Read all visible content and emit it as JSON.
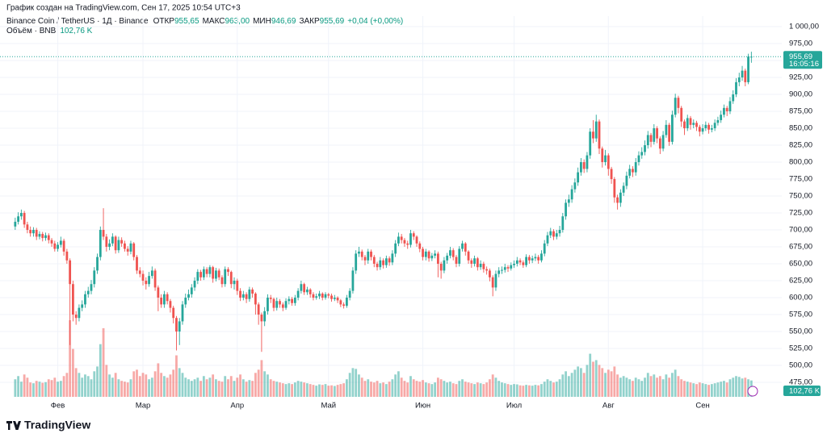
{
  "header": {
    "created": "График создан на TradingView.com, Сен 17, 2025 10:54 UTC+3"
  },
  "chart_data": {
    "type": "candlestick",
    "title": "Binance Coin / TetherUS · 1Д · Binance",
    "legend": [
      {
        "name": "ОТКР",
        "value": 955.65,
        "value_label": "955,65"
      },
      {
        "name": "МАКС",
        "value": 963,
        "value_label": "963,00"
      },
      {
        "name": "МИН",
        "value": 946.69,
        "value_label": "946,69"
      },
      {
        "name": "ЗАКР",
        "value": 955.69,
        "value_label": "955,69"
      }
    ],
    "change": {
      "value": 0.04,
      "label": "+0,04 (+0,00%)"
    },
    "volume_title": "Объём · BNB",
    "volume_last": {
      "value": 102.76,
      "label": "102,76 K"
    },
    "last_price": {
      "value": 955.69,
      "label": "955,69"
    },
    "countdown": "16:05:16",
    "up_color": "#26a69a",
    "down_color": "#ef5350",
    "grid": true,
    "xlim": [
      13,
      270
    ],
    "xticks": [
      {
        "value": 32,
        "label": "Фев"
      },
      {
        "value": 60,
        "label": "Мар"
      },
      {
        "value": 91,
        "label": "Апр"
      },
      {
        "value": 121,
        "label": "Май"
      },
      {
        "value": 152,
        "label": "Июн"
      },
      {
        "value": 182,
        "label": "Июл"
      },
      {
        "value": 213,
        "label": "Авг"
      },
      {
        "value": 244,
        "label": "Сен"
      }
    ],
    "ylim": [
      453.6,
      1015.5
    ],
    "yticks": [
      {
        "value": 475,
        "label": "475,00"
      },
      {
        "value": 500,
        "label": "500,00"
      },
      {
        "value": 525,
        "label": "525,00"
      },
      {
        "value": 550,
        "label": "550,00"
      },
      {
        "value": 575,
        "label": "575,00"
      },
      {
        "value": 600,
        "label": "600,00"
      },
      {
        "value": 625,
        "label": "625,00"
      },
      {
        "value": 650,
        "label": "650,00"
      },
      {
        "value": 675,
        "label": "675,00"
      },
      {
        "value": 700,
        "label": "700,00"
      },
      {
        "value": 725,
        "label": "725,00"
      },
      {
        "value": 750,
        "label": "750,00"
      },
      {
        "value": 775,
        "label": "775,00"
      },
      {
        "value": 800,
        "label": "800,00"
      },
      {
        "value": 825,
        "label": "825,00"
      },
      {
        "value": 850,
        "label": "850,00"
      },
      {
        "value": 875,
        "label": "875,00"
      },
      {
        "value": 900,
        "label": "900,00"
      },
      {
        "value": 925,
        "label": "925,00"
      },
      {
        "value": 950,
        "label": "950,00"
      },
      {
        "value": 975,
        "label": "975,00"
      },
      {
        "value": 1000,
        "label": "1 000,00"
      }
    ],
    "x": [
      18,
      19,
      20,
      21,
      22,
      23,
      24,
      25,
      26,
      27,
      28,
      29,
      30,
      31,
      32,
      33,
      34,
      35,
      36,
      37,
      38,
      39,
      40,
      41,
      42,
      43,
      44,
      45,
      46,
      47,
      48,
      49,
      50,
      51,
      52,
      53,
      54,
      55,
      56,
      57,
      58,
      59,
      60,
      61,
      62,
      63,
      64,
      65,
      66,
      67,
      68,
      69,
      70,
      71,
      72,
      73,
      74,
      75,
      76,
      77,
      78,
      79,
      80,
      81,
      82,
      83,
      84,
      85,
      86,
      87,
      88,
      89,
      90,
      91,
      92,
      93,
      94,
      95,
      96,
      97,
      98,
      99,
      100,
      101,
      102,
      103,
      104,
      105,
      106,
      107,
      108,
      109,
      110,
      111,
      112,
      113,
      114,
      115,
      116,
      117,
      118,
      119,
      120,
      121,
      122,
      123,
      124,
      125,
      126,
      127,
      128,
      129,
      130,
      131,
      132,
      133,
      134,
      135,
      136,
      137,
      138,
      139,
      140,
      141,
      142,
      143,
      144,
      145,
      146,
      147,
      148,
      149,
      150,
      151,
      152,
      153,
      154,
      155,
      156,
      157,
      158,
      159,
      160,
      161,
      162,
      163,
      164,
      165,
      166,
      167,
      168,
      169,
      170,
      171,
      172,
      173,
      174,
      175,
      176,
      177,
      178,
      179,
      180,
      181,
      182,
      183,
      184,
      185,
      186,
      187,
      188,
      189,
      190,
      191,
      192,
      193,
      194,
      195,
      196,
      197,
      198,
      199,
      200,
      201,
      202,
      203,
      204,
      205,
      206,
      207,
      208,
      209,
      210,
      211,
      212,
      213,
      214,
      215,
      216,
      217,
      218,
      219,
      220,
      221,
      222,
      223,
      224,
      225,
      226,
      227,
      228,
      229,
      230,
      231,
      232,
      233,
      234,
      235,
      236,
      237,
      238,
      239,
      240,
      241,
      242,
      243,
      244,
      245,
      246,
      247,
      248,
      249,
      250,
      251,
      252,
      253,
      254,
      255,
      256,
      257,
      258,
      259,
      260
    ],
    "open": [
      705,
      712,
      720,
      725,
      708,
      700,
      695,
      700,
      690,
      694,
      688,
      692,
      685,
      680,
      672,
      678,
      684,
      668,
      655,
      620,
      575,
      570,
      585,
      590,
      605,
      610,
      620,
      640,
      660,
      700,
      690,
      675,
      680,
      690,
      670,
      685,
      680,
      672,
      668,
      680,
      660,
      640,
      635,
      625,
      620,
      632,
      640,
      615,
      600,
      590,
      605,
      595,
      585,
      570,
      550,
      565,
      590,
      600,
      605,
      615,
      625,
      638,
      630,
      642,
      635,
      645,
      628,
      640,
      630,
      620,
      642,
      638,
      620,
      625,
      610,
      600,
      605,
      598,
      612,
      606,
      590,
      575,
      565,
      580,
      600,
      598,
      585,
      595,
      590,
      585,
      595,
      598,
      592,
      600,
      610,
      620,
      608,
      612,
      605,
      600,
      602,
      606,
      600,
      605,
      603,
      598,
      600,
      596,
      590,
      588,
      600,
      610,
      640,
      665,
      668,
      660,
      655,
      668,
      660,
      650,
      645,
      655,
      648,
      658,
      652,
      665,
      680,
      690,
      685,
      680,
      678,
      695,
      690,
      680,
      672,
      660,
      668,
      658,
      662,
      665,
      650,
      640,
      655,
      662,
      670,
      660,
      650,
      672,
      680,
      668,
      655,
      650,
      658,
      645,
      650,
      642,
      640,
      630,
      615,
      635,
      640,
      641,
      645,
      643,
      648,
      650,
      655,
      652,
      648,
      660,
      655,
      658,
      660,
      655,
      665,
      680,
      692,
      698,
      690,
      695,
      700,
      720,
      740,
      745,
      760,
      770,
      785,
      800,
      790,
      810,
      845,
      835,
      860,
      820,
      800,
      810,
      790,
      775,
      748,
      740,
      755,
      765,
      780,
      790,
      785,
      800,
      810,
      815,
      825,
      840,
      830,
      850,
      835,
      820,
      840,
      855,
      830,
      870,
      895,
      880,
      860,
      850,
      865,
      855,
      858,
      852,
      845,
      850,
      855,
      848,
      850,
      858,
      862,
      870,
      880,
      875,
      890,
      900,
      918,
      925,
      935,
      918,
      955.65
    ],
    "high": [
      718,
      726,
      730,
      728,
      712,
      705,
      704,
      703,
      698,
      697,
      696,
      695,
      688,
      684,
      682,
      690,
      687,
      672,
      658,
      625,
      580,
      590,
      596,
      610,
      616,
      626,
      645,
      665,
      705,
      732,
      694,
      686,
      695,
      692,
      690,
      689,
      684,
      676,
      684,
      682,
      663,
      645,
      640,
      630,
      638,
      646,
      643,
      618,
      605,
      610,
      608,
      598,
      588,
      573,
      570,
      595,
      606,
      612,
      620,
      630,
      642,
      641,
      646,
      645,
      648,
      647,
      644,
      643,
      633,
      646,
      645,
      640,
      630,
      628,
      614,
      610,
      608,
      616,
      615,
      608,
      593,
      578,
      586,
      605,
      604,
      600,
      600,
      598,
      593,
      599,
      602,
      601,
      604,
      614,
      625,
      622,
      616,
      614,
      608,
      606,
      610,
      608,
      608,
      607,
      606,
      604,
      602,
      598,
      593,
      604,
      614,
      645,
      670,
      675,
      671,
      663,
      672,
      671,
      663,
      653,
      660,
      658,
      662,
      661,
      670,
      685,
      696,
      694,
      688,
      684,
      700,
      698,
      692,
      683,
      675,
      672,
      670,
      666,
      670,
      668,
      653,
      660,
      666,
      675,
      673,
      663,
      676,
      684,
      682,
      670,
      658,
      662,
      660,
      655,
      653,
      646,
      643,
      633,
      640,
      645,
      646,
      650,
      648,
      652,
      655,
      660,
      658,
      655,
      664,
      663,
      662,
      665,
      663,
      670,
      685,
      697,
      703,
      701,
      700,
      706,
      725,
      745,
      752,
      766,
      776,
      792,
      806,
      804,
      815,
      850,
      862,
      870,
      863,
      823,
      818,
      813,
      793,
      778,
      752,
      760,
      770,
      786,
      796,
      794,
      806,
      816,
      822,
      832,
      846,
      843,
      856,
      853,
      838,
      846,
      862,
      858,
      876,
      901,
      898,
      883,
      863,
      870,
      868,
      863,
      861,
      855,
      856,
      860,
      858,
      855,
      863,
      867,
      876,
      885,
      883,
      896,
      906,
      924,
      932,
      942,
      938,
      960,
      963
    ],
    "low": [
      700,
      708,
      715,
      703,
      695,
      690,
      690,
      685,
      686,
      683,
      684,
      680,
      675,
      668,
      668,
      674,
      662,
      650,
      530,
      565,
      560,
      565,
      580,
      585,
      600,
      605,
      615,
      635,
      655,
      685,
      668,
      670,
      676,
      665,
      666,
      675,
      668,
      662,
      664,
      655,
      635,
      630,
      618,
      612,
      616,
      628,
      610,
      580,
      585,
      585,
      590,
      578,
      562,
      522,
      530,
      560,
      585,
      596,
      600,
      610,
      620,
      625,
      626,
      630,
      630,
      622,
      624,
      626,
      615,
      616,
      632,
      614,
      612,
      604,
      595,
      596,
      592,
      594,
      600,
      575,
      560,
      520,
      558,
      575,
      592,
      580,
      581,
      585,
      580,
      582,
      590,
      588,
      588,
      596,
      606,
      604,
      604,
      600,
      596,
      597,
      598,
      596,
      597,
      599,
      594,
      595,
      592,
      586,
      584,
      585,
      596,
      606,
      635,
      660,
      655,
      648,
      650,
      655,
      645,
      640,
      641,
      643,
      644,
      647,
      648,
      660,
      676,
      680,
      675,
      672,
      674,
      685,
      675,
      667,
      655,
      655,
      653,
      654,
      658,
      630,
      628,
      636,
      650,
      658,
      655,
      645,
      646,
      668,
      662,
      650,
      644,
      646,
      640,
      641,
      637,
      634,
      624,
      602,
      610,
      630,
      635,
      637,
      638,
      640,
      644,
      646,
      648,
      644,
      645,
      650,
      651,
      654,
      650,
      652,
      661,
      676,
      688,
      685,
      686,
      690,
      696,
      715,
      734,
      740,
      755,
      765,
      780,
      784,
      785,
      805,
      828,
      830,
      812,
      792,
      795,
      780,
      768,
      740,
      730,
      734,
      750,
      760,
      776,
      778,
      780,
      795,
      805,
      810,
      820,
      822,
      826,
      828,
      812,
      816,
      836,
      824,
      826,
      866,
      872,
      852,
      840,
      846,
      848,
      850,
      846,
      838,
      841,
      846,
      842,
      844,
      846,
      854,
      858,
      866,
      868,
      871,
      886,
      896,
      912,
      920,
      912,
      915,
      946.69
    ],
    "close": [
      712,
      720,
      725,
      708,
      700,
      695,
      700,
      690,
      694,
      688,
      692,
      685,
      680,
      672,
      678,
      684,
      668,
      655,
      620,
      575,
      570,
      585,
      590,
      605,
      610,
      620,
      640,
      660,
      700,
      690,
      675,
      680,
      690,
      670,
      685,
      680,
      672,
      668,
      680,
      660,
      640,
      635,
      625,
      620,
      632,
      640,
      615,
      600,
      590,
      605,
      595,
      585,
      570,
      550,
      565,
      590,
      600,
      605,
      615,
      625,
      638,
      630,
      642,
      635,
      645,
      628,
      640,
      630,
      620,
      642,
      638,
      620,
      625,
      610,
      600,
      605,
      598,
      612,
      606,
      590,
      575,
      565,
      580,
      600,
      598,
      585,
      595,
      590,
      585,
      595,
      598,
      592,
      600,
      610,
      620,
      608,
      612,
      605,
      600,
      602,
      606,
      600,
      605,
      603,
      598,
      600,
      596,
      590,
      588,
      600,
      610,
      640,
      665,
      668,
      660,
      655,
      668,
      660,
      650,
      645,
      655,
      648,
      658,
      652,
      665,
      680,
      690,
      685,
      680,
      678,
      695,
      690,
      680,
      672,
      660,
      668,
      658,
      662,
      665,
      650,
      640,
      655,
      662,
      670,
      660,
      650,
      672,
      680,
      668,
      655,
      650,
      658,
      645,
      650,
      642,
      640,
      630,
      615,
      635,
      640,
      641,
      645,
      643,
      648,
      650,
      655,
      652,
      648,
      660,
      655,
      658,
      660,
      655,
      665,
      680,
      692,
      698,
      690,
      695,
      700,
      720,
      740,
      745,
      760,
      770,
      785,
      800,
      790,
      810,
      845,
      835,
      860,
      820,
      800,
      810,
      790,
      775,
      748,
      740,
      755,
      765,
      780,
      790,
      785,
      800,
      810,
      815,
      825,
      840,
      830,
      850,
      835,
      820,
      840,
      855,
      830,
      870,
      895,
      880,
      860,
      850,
      865,
      855,
      858,
      852,
      845,
      850,
      855,
      848,
      850,
      858,
      862,
      870,
      880,
      875,
      890,
      900,
      918,
      925,
      935,
      918,
      955.65,
      955.69
    ],
    "volume": [
      110,
      130,
      95,
      140,
      120,
      90,
      85,
      100,
      95,
      88,
      92,
      110,
      105,
      120,
      95,
      100,
      130,
      150,
      480,
      300,
      180,
      150,
      120,
      140,
      130,
      110,
      160,
      190,
      330,
      430,
      200,
      140,
      120,
      150,
      110,
      100,
      95,
      90,
      110,
      160,
      170,
      130,
      150,
      140,
      110,
      120,
      160,
      210,
      150,
      130,
      120,
      140,
      170,
      260,
      180,
      150,
      120,
      110,
      100,
      110,
      120,
      100,
      130,
      110,
      120,
      140,
      110,
      100,
      95,
      130,
      110,
      130,
      100,
      120,
      140,
      110,
      95,
      105,
      100,
      150,
      170,
      230,
      160,
      140,
      110,
      100,
      95,
      90,
      85,
      80,
      85,
      80,
      90,
      100,
      95,
      90,
      85,
      80,
      75,
      70,
      78,
      75,
      80,
      70,
      72,
      68,
      75,
      80,
      85,
      110,
      150,
      180,
      175,
      140,
      120,
      100,
      110,
      95,
      90,
      100,
      85,
      90,
      80,
      95,
      110,
      140,
      160,
      120,
      100,
      90,
      130,
      110,
      100,
      95,
      105,
      90,
      85,
      80,
      90,
      120,
      110,
      100,
      90,
      95,
      85,
      80,
      100,
      110,
      95,
      90,
      85,
      80,
      90,
      85,
      80,
      90,
      110,
      140,
      120,
      100,
      90,
      85,
      80,
      75,
      80,
      78,
      72,
      70,
      75,
      72,
      70,
      75,
      72,
      80,
      95,
      110,
      100,
      90,
      95,
      110,
      140,
      160,
      130,
      150,
      170,
      190,
      180,
      150,
      200,
      270,
      220,
      230,
      200,
      180,
      150,
      170,
      160,
      190,
      140,
      120,
      130,
      120,
      110,
      100,
      120,
      110,
      100,
      120,
      150,
      130,
      140,
      120,
      130,
      110,
      140,
      120,
      150,
      170,
      130,
      110,
      100,
      95,
      90,
      85,
      80,
      90,
      85,
      80,
      75,
      80,
      85,
      90,
      95,
      100,
      90,
      110,
      120,
      130,
      125,
      115,
      120,
      110,
      102.76
    ]
  },
  "footer": {
    "brand": "TradingView"
  }
}
